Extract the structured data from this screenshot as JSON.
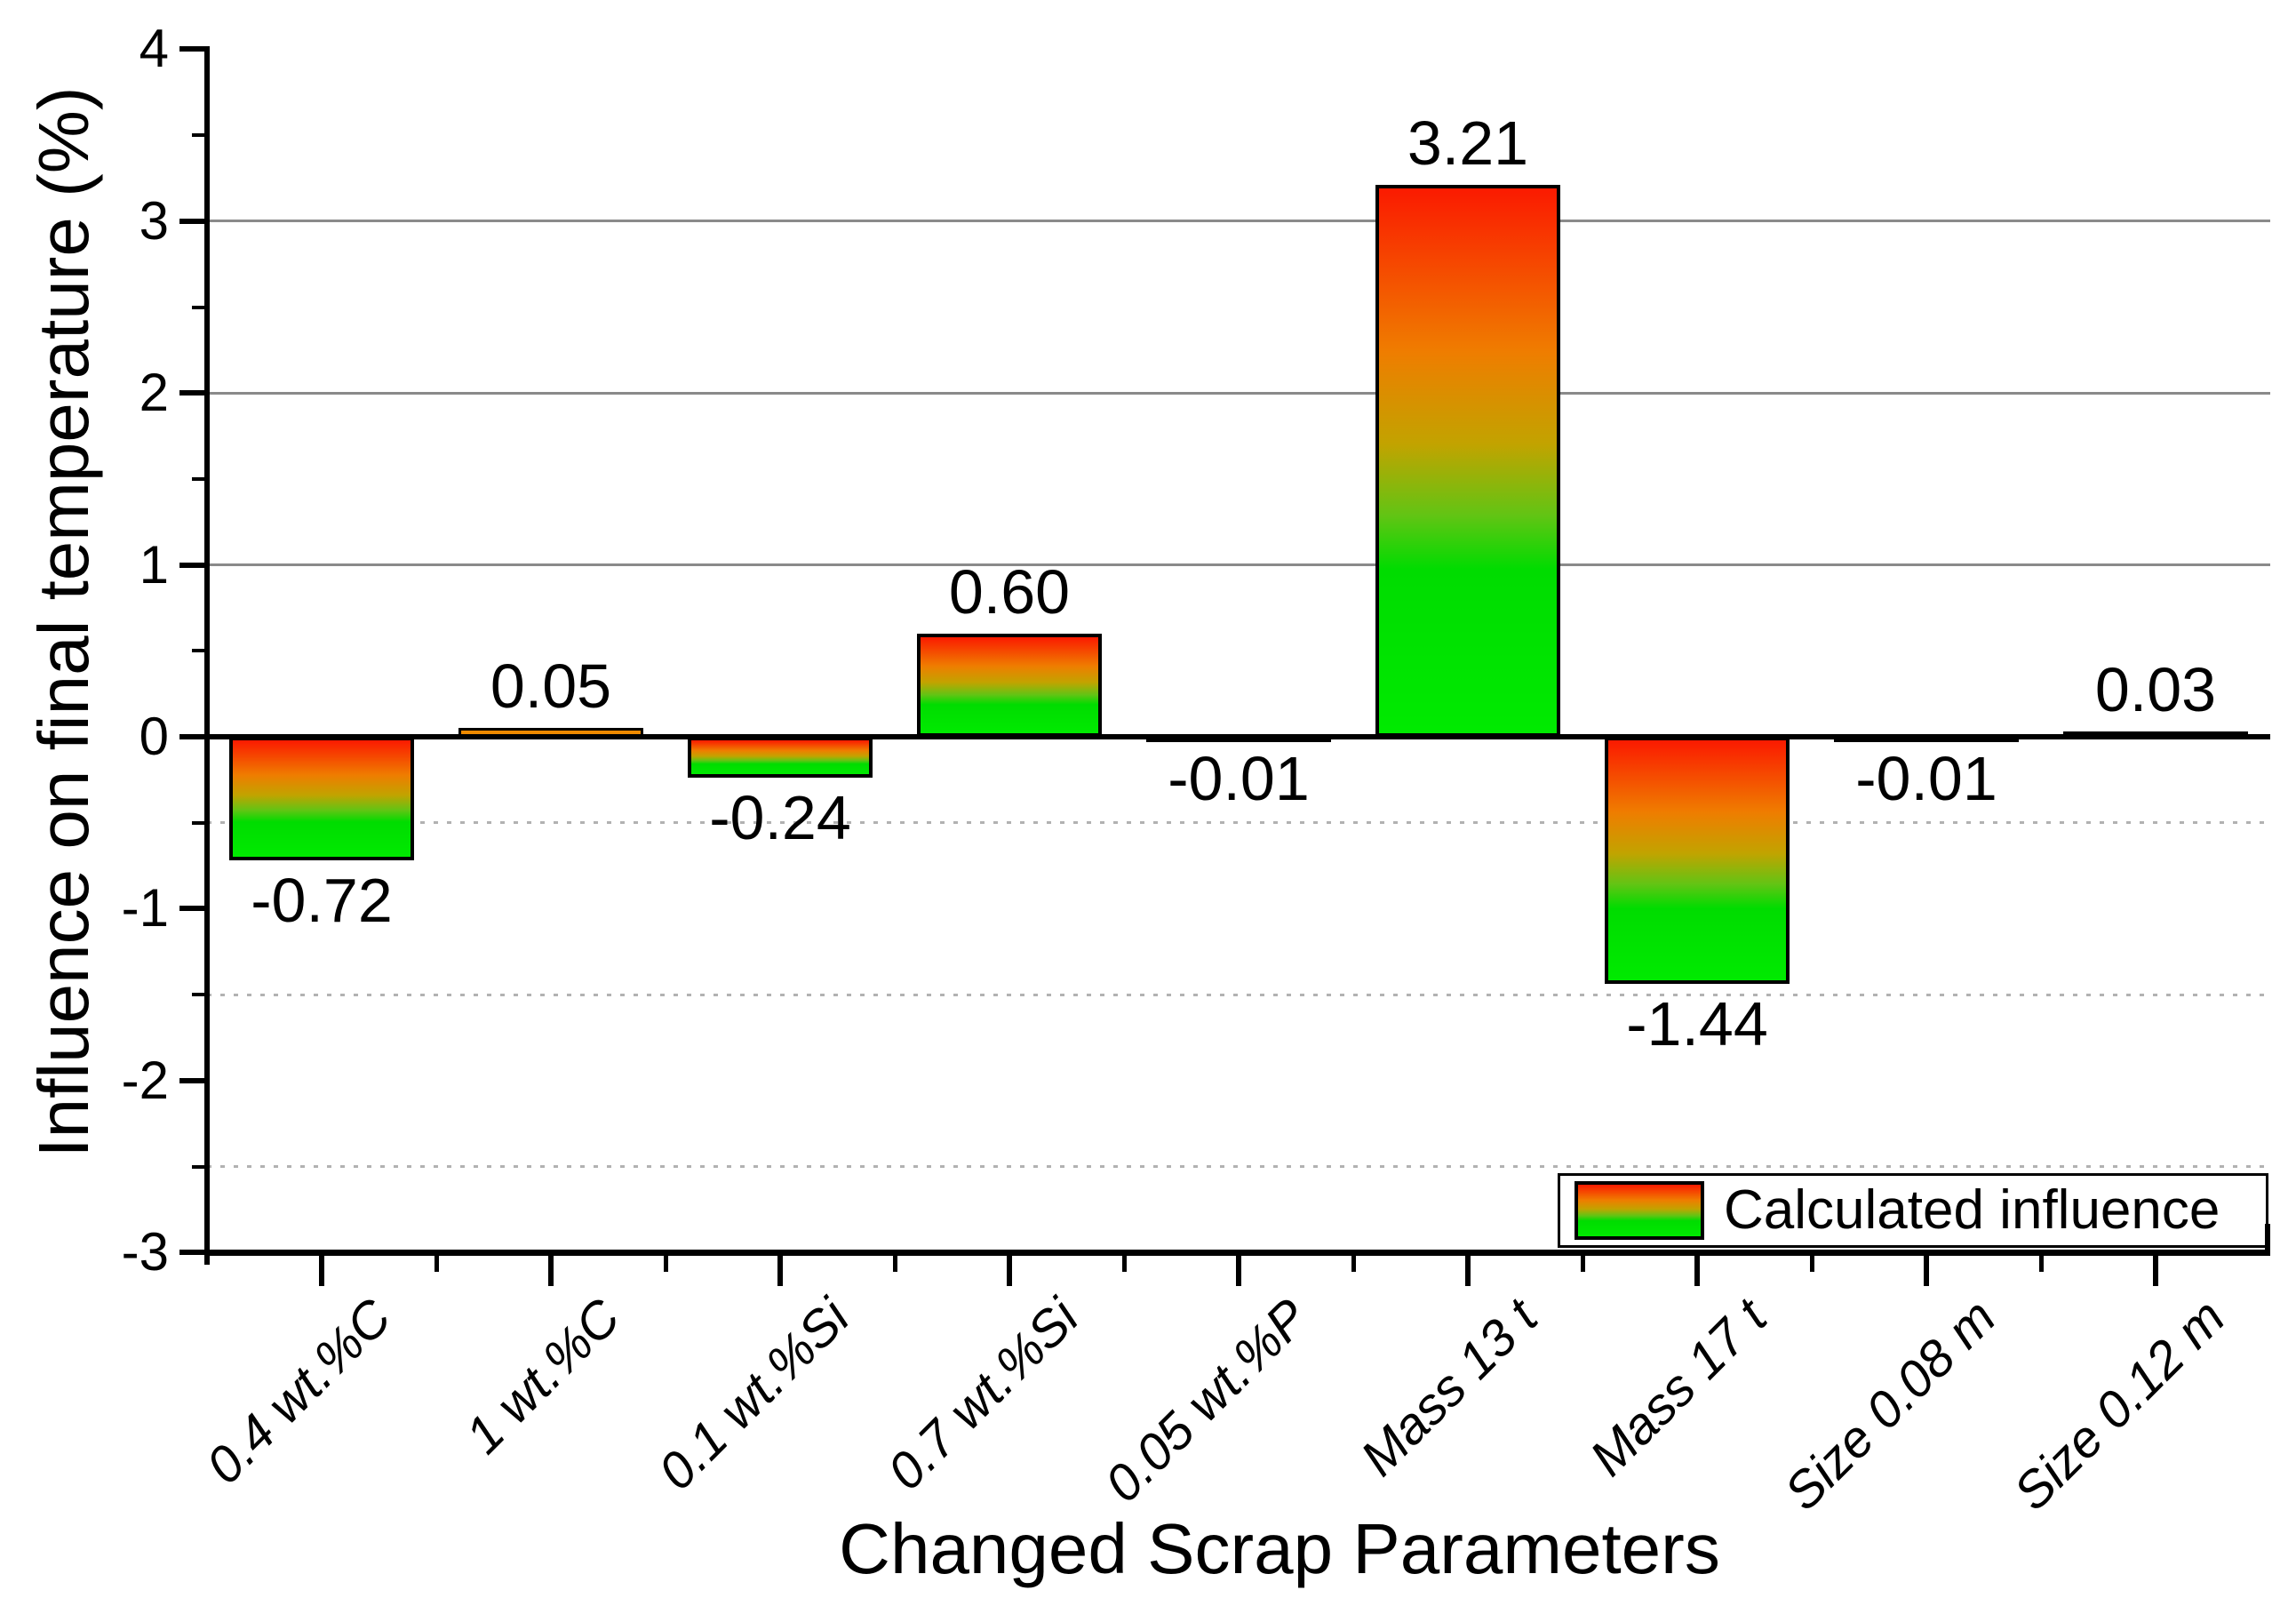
{
  "chart_data": {
    "type": "bar",
    "title": "",
    "xlabel": "Changed Scrap Parameters",
    "ylabel": "Influence on final temperature (%)",
    "categories": [
      "0.4 wt.%C",
      "1 wt.%C",
      "0.1 wt.%Si",
      "0.7 wt.%Si",
      "0.05 wt.%P",
      "Mass 13 t",
      "Mass 17 t",
      "Size 0.08 m",
      "Size 0.12 m"
    ],
    "values": [
      -0.72,
      0.05,
      -0.24,
      0.6,
      -0.01,
      3.21,
      -1.44,
      -0.01,
      0.03
    ],
    "value_labels": [
      "-0.72",
      "0.05",
      "-0.24",
      "0.60",
      "-0.01",
      "3.21",
      "-1.44",
      "-0.01",
      "0.03"
    ],
    "y_axis": {
      "min": -3,
      "max": 4,
      "major_step": 1,
      "minor_step": 0.5,
      "major_tick_labels": [
        "-3",
        "-2",
        "-1",
        "0",
        "1",
        "2",
        "3",
        "4"
      ],
      "solid_gridlines": [
        1,
        2,
        3
      ],
      "dotted_gridlines": [
        -0.5,
        -1.5,
        -2.5
      ]
    },
    "legend": {
      "label": "Calculated influence",
      "position": "bottom-right"
    },
    "grid": "major solid above zero, minor dotted below zero",
    "colors": {
      "bar_gradient_top_red": "#fb1a00",
      "bar_gradient_orange": "#ef7d00",
      "bar_gradient_olive": "#c2a300",
      "bar_gradient_green": "#00dc00",
      "bar_gradient_bottom_green": "#00ea00",
      "tiny_positive_bar_fill": "#ef8a00",
      "tiny_bar_fill_black": "#000000",
      "bar_border": "#000000",
      "axis": "#000000",
      "solid_gridline": "#8a8a8a",
      "dotted_gridline": "#b2b2b2",
      "text": "#000000",
      "background": "#ffffff"
    }
  }
}
